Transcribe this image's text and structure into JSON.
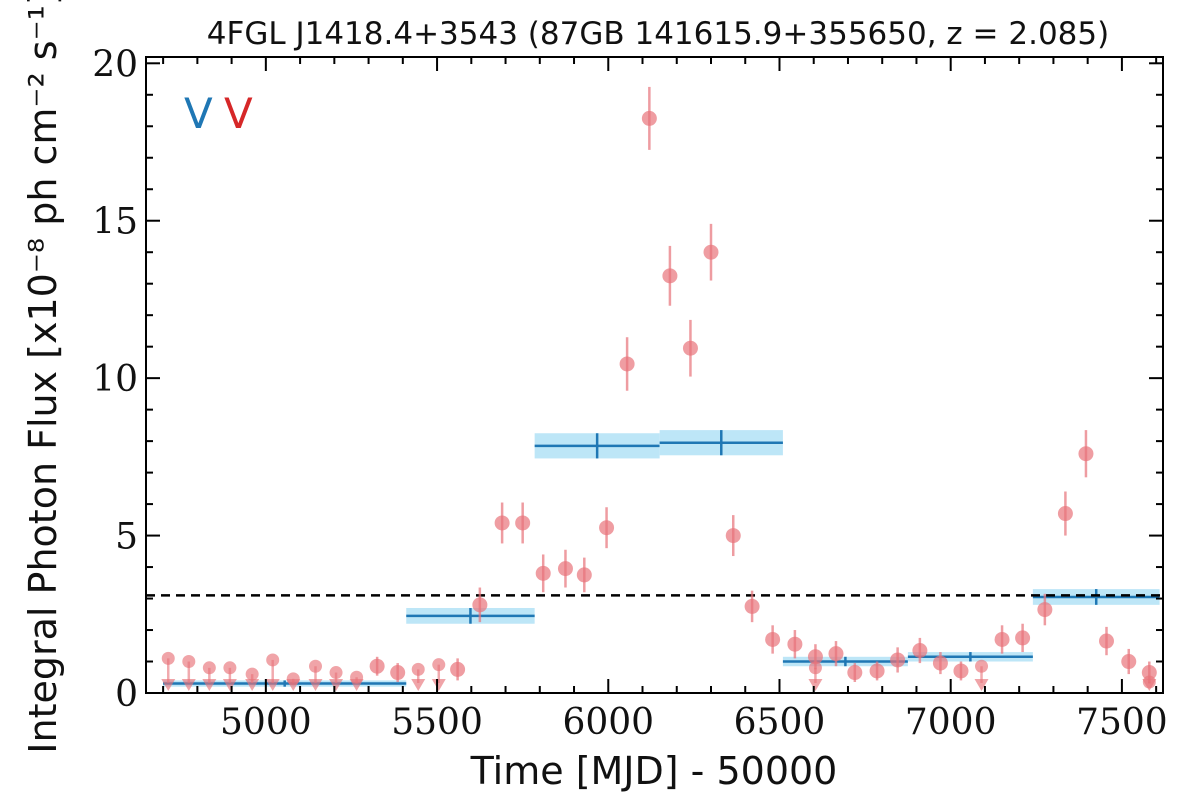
{
  "chart_data": {
    "type": "scatter",
    "title": "4FGL J1418.4+3543 (87GB 141615.9+355650, z = 2.085)",
    "xlabel": "Time [MJD] - 50000",
    "ylabel": "Integral Photon Flux [x10⁻⁸ ph cm⁻² s⁻¹]",
    "xlim": [
      4650,
      7620
    ],
    "ylim": [
      0,
      20.2
    ],
    "x_ticks": [
      5000,
      5500,
      6000,
      6500,
      7000,
      7500
    ],
    "y_ticks": [
      0,
      5,
      10,
      15,
      20
    ],
    "x_tick_labels": [
      "5000",
      "5500",
      "6000",
      "6500",
      "7000",
      "7500"
    ],
    "y_tick_labels": [
      "0",
      "5",
      "10",
      "15",
      "20"
    ],
    "markers": [
      {
        "text": "V",
        "color": "#1f77b4"
      },
      {
        "text": "V",
        "color": "#d62728"
      }
    ],
    "reference_line": {
      "y": 3.1,
      "style": "dashed",
      "color": "#000000"
    },
    "series": [
      {
        "kind": "detections",
        "color": "#e8737a",
        "points": [
          {
            "x": 5325,
            "y": 0.85,
            "err": 0.3
          },
          {
            "x": 5385,
            "y": 0.65,
            "err": 0.3
          },
          {
            "x": 5560,
            "y": 0.75,
            "err": 0.35
          },
          {
            "x": 5625,
            "y": 2.8,
            "err": 0.55
          },
          {
            "x": 5690,
            "y": 5.4,
            "err": 0.65
          },
          {
            "x": 5750,
            "y": 5.4,
            "err": 0.65
          },
          {
            "x": 5810,
            "y": 3.8,
            "err": 0.6
          },
          {
            "x": 5875,
            "y": 3.95,
            "err": 0.6
          },
          {
            "x": 5930,
            "y": 3.75,
            "err": 0.55
          },
          {
            "x": 5995,
            "y": 5.25,
            "err": 0.65
          },
          {
            "x": 6055,
            "y": 10.45,
            "err": 0.85
          },
          {
            "x": 6120,
            "y": 18.25,
            "err": 1.0
          },
          {
            "x": 6180,
            "y": 13.25,
            "err": 0.95
          },
          {
            "x": 6240,
            "y": 10.95,
            "err": 0.9
          },
          {
            "x": 6300,
            "y": 14.0,
            "err": 0.9
          },
          {
            "x": 6365,
            "y": 5.0,
            "err": 0.65
          },
          {
            "x": 6420,
            "y": 2.75,
            "err": 0.5
          },
          {
            "x": 6480,
            "y": 1.7,
            "err": 0.45
          },
          {
            "x": 6545,
            "y": 1.55,
            "err": 0.45
          },
          {
            "x": 6605,
            "y": 1.15,
            "err": 0.4
          },
          {
            "x": 6665,
            "y": 1.25,
            "err": 0.4
          },
          {
            "x": 6720,
            "y": 0.65,
            "err": 0.3
          },
          {
            "x": 6785,
            "y": 0.7,
            "err": 0.3
          },
          {
            "x": 6845,
            "y": 1.05,
            "err": 0.4
          },
          {
            "x": 6910,
            "y": 1.35,
            "err": 0.4
          },
          {
            "x": 6970,
            "y": 0.95,
            "err": 0.35
          },
          {
            "x": 7030,
            "y": 0.7,
            "err": 0.3
          },
          {
            "x": 7150,
            "y": 1.7,
            "err": 0.45
          },
          {
            "x": 7210,
            "y": 1.75,
            "err": 0.45
          },
          {
            "x": 7275,
            "y": 2.65,
            "err": 0.5
          },
          {
            "x": 7335,
            "y": 5.7,
            "err": 0.7
          },
          {
            "x": 7395,
            "y": 7.6,
            "err": 0.75
          },
          {
            "x": 7455,
            "y": 1.65,
            "err": 0.45
          },
          {
            "x": 7520,
            "y": 1.0,
            "err": 0.4
          },
          {
            "x": 7580,
            "y": 0.65,
            "err": 0.35
          }
        ]
      },
      {
        "kind": "upper_limits",
        "color": "#e8737a",
        "points": [
          {
            "x": 4715,
            "y": 1.1
          },
          {
            "x": 4775,
            "y": 1.0
          },
          {
            "x": 4835,
            "y": 0.8
          },
          {
            "x": 4895,
            "y": 0.8
          },
          {
            "x": 4960,
            "y": 0.6
          },
          {
            "x": 5020,
            "y": 1.05
          },
          {
            "x": 5080,
            "y": 0.45
          },
          {
            "x": 5145,
            "y": 0.85
          },
          {
            "x": 5205,
            "y": 0.65
          },
          {
            "x": 5265,
            "y": 0.5
          },
          {
            "x": 5445,
            "y": 0.75
          },
          {
            "x": 5505,
            "y": 0.9
          },
          {
            "x": 6605,
            "y": 0.8
          },
          {
            "x": 7090,
            "y": 0.85
          },
          {
            "x": 7580,
            "y": 0.35
          }
        ]
      },
      {
        "kind": "bayesian_blocks",
        "color": "#1f77b4",
        "band_color": "#bde6f7",
        "blocks": [
          {
            "x0": 4700,
            "x1": 5410,
            "y": 0.3,
            "err": 0.1
          },
          {
            "x0": 5410,
            "x1": 5785,
            "y": 2.45,
            "err": 0.25
          },
          {
            "x0": 5785,
            "x1": 6150,
            "y": 7.85,
            "err": 0.4
          },
          {
            "x0": 6150,
            "x1": 6510,
            "y": 7.95,
            "err": 0.4
          },
          {
            "x0": 6510,
            "x1": 6875,
            "y": 1.0,
            "err": 0.15
          },
          {
            "x0": 6875,
            "x1": 7240,
            "y": 1.15,
            "err": 0.15
          },
          {
            "x0": 7240,
            "x1": 7610,
            "y": 3.05,
            "err": 0.25
          }
        ]
      }
    ]
  }
}
